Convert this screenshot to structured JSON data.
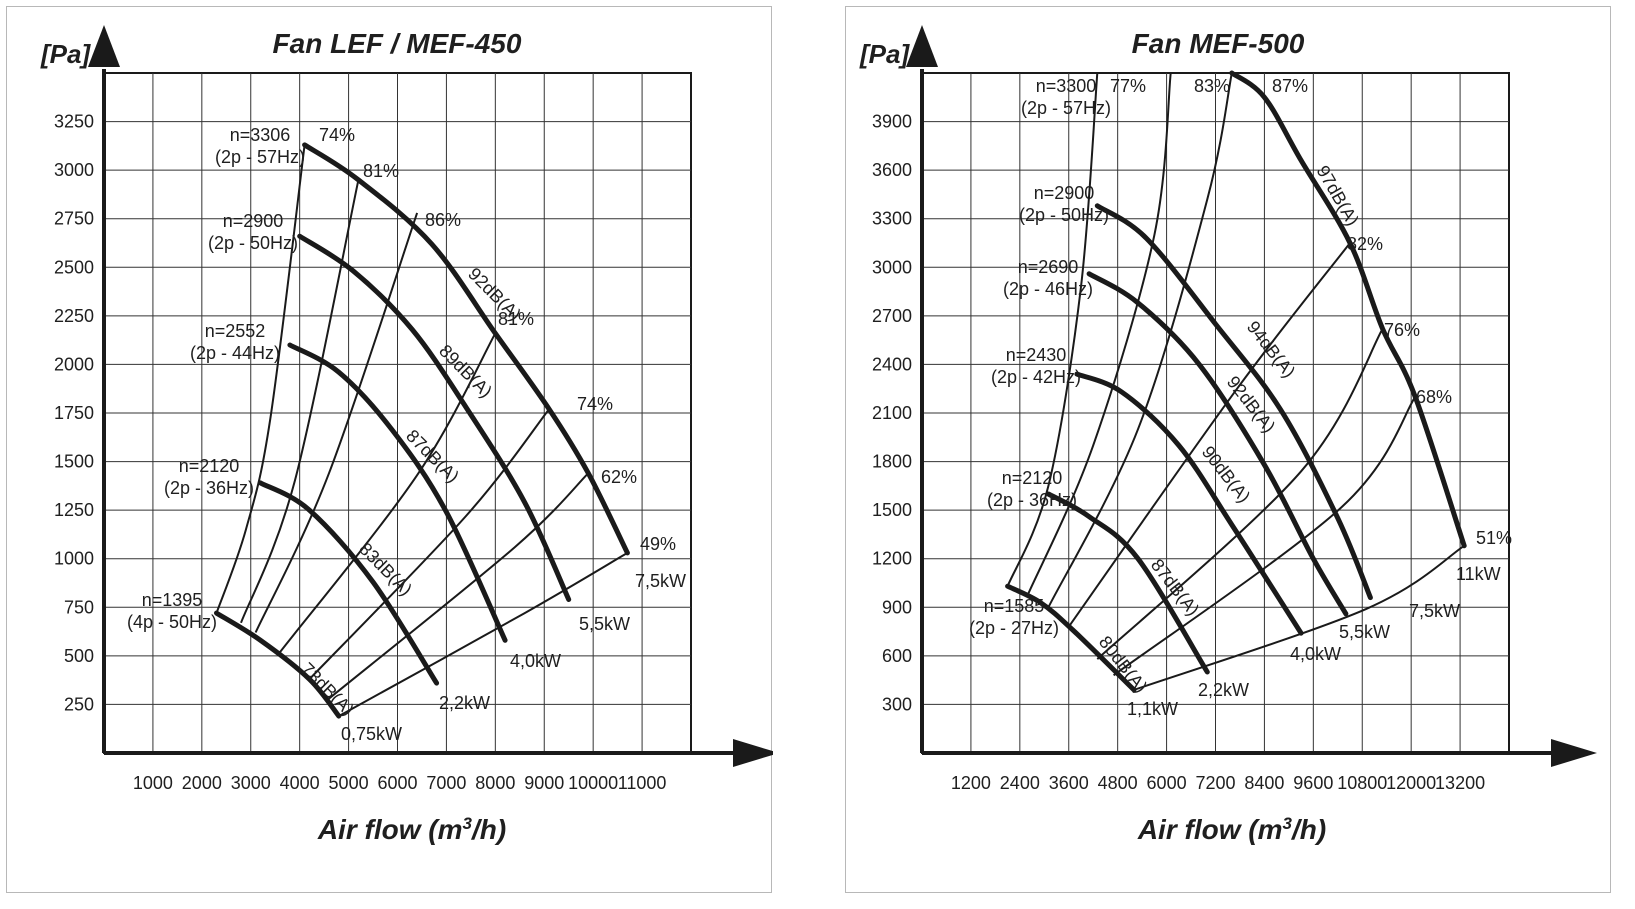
{
  "chart_data": [
    {
      "type": "line",
      "title": "Fan LEF / MEF-450",
      "ylabel": "[Pa]",
      "xlabel": "Air flow (m³/h)",
      "xlabel_parts": [
        "Air flow (m",
        "3",
        "/h)"
      ],
      "xlim": [
        0,
        12000
      ],
      "ylim": [
        0,
        3500
      ],
      "xticks": [
        1000,
        2000,
        3000,
        4000,
        5000,
        6000,
        7000,
        8000,
        9000,
        10000,
        11000
      ],
      "yticks": [
        250,
        500,
        750,
        1000,
        1250,
        1500,
        1750,
        2000,
        2250,
        2500,
        2750,
        3000,
        3250
      ],
      "grid": true,
      "speed_curves": [
        {
          "label": [
            "n=3306",
            "(2p - 57Hz)"
          ],
          "points": [
            [
              4100,
              3130
            ],
            [
              5200,
              2950
            ],
            [
              6700,
              2620
            ],
            [
              8000,
              2160
            ],
            [
              9100,
              1770
            ],
            [
              9900,
              1440
            ],
            [
              10700,
              1030
            ]
          ]
        },
        {
          "label": [
            "n=2900",
            "(2p - 50Hz)"
          ],
          "points": [
            [
              4000,
              2660
            ],
            [
              5100,
              2480
            ],
            [
              6300,
              2180
            ],
            [
              7400,
              1780
            ],
            [
              8600,
              1290
            ],
            [
              9500,
              790
            ]
          ]
        },
        {
          "label": [
            "n=2552",
            "(2p - 44Hz)"
          ],
          "points": [
            [
              3800,
              2100
            ],
            [
              4800,
              1960
            ],
            [
              5900,
              1660
            ],
            [
              7000,
              1240
            ],
            [
              8200,
              580
            ]
          ]
        },
        {
          "label": [
            "n=2120",
            "(2p - 36Hz)"
          ],
          "points": [
            [
              3200,
              1390
            ],
            [
              4200,
              1250
            ],
            [
              5500,
              880
            ],
            [
              6800,
              360
            ]
          ]
        },
        {
          "label": [
            "n=1395",
            "(4p - 50Hz)"
          ],
          "points": [
            [
              2300,
              720
            ],
            [
              3200,
              580
            ],
            [
              4200,
              380
            ],
            [
              4800,
              190
            ]
          ]
        }
      ],
      "efficiency_lines": [
        {
          "label": "74%",
          "points": [
            [
              2300,
              720
            ],
            [
              2900,
              1150
            ],
            [
              3400,
              1720
            ],
            [
              4100,
              3130
            ]
          ]
        },
        {
          "label": "81%",
          "points": [
            [
              2800,
              670
            ],
            [
              3900,
              1400
            ],
            [
              5200,
              2950
            ]
          ]
        },
        {
          "label": "86%",
          "points": [
            [
              3100,
              620
            ],
            [
              4600,
              1440
            ],
            [
              6400,
              2780
            ]
          ]
        },
        {
          "label": "81%",
          "points": [
            [
              3600,
              520
            ],
            [
              6400,
              1430
            ],
            [
              8000,
              2160
            ]
          ]
        },
        {
          "label": "74%",
          "points": [
            [
              4200,
              380
            ],
            [
              7400,
              1220
            ],
            [
              9100,
              1770
            ]
          ]
        },
        {
          "label": "62%",
          "points": [
            [
              4600,
              280
            ],
            [
              8400,
              1060
            ],
            [
              9900,
              1440
            ]
          ]
        },
        {
          "label": "49%",
          "points": [
            [
              4800,
              190
            ],
            [
              8600,
              720
            ],
            [
              10700,
              1030
            ]
          ]
        }
      ],
      "power_labels": [
        "0,75kW",
        "2,2kW",
        "4,0kW",
        "5,5kW",
        "7,5kW"
      ],
      "efficiency_labels": [
        "74%",
        "81%",
        "86%",
        "81%",
        "74%",
        "62%",
        "49%"
      ],
      "noise_labels": [
        "73dB(A)",
        "83dB(A)",
        "87dB(A)",
        "89dB(A)",
        "92dB(A)"
      ]
    },
    {
      "type": "line",
      "title": "Fan MEF-500",
      "ylabel": "[Pa]",
      "xlabel": "Air flow (m³/h)",
      "xlabel_parts": [
        "Air flow (m",
        "3",
        "/h)"
      ],
      "xlim": [
        0,
        14400
      ],
      "ylim": [
        0,
        4200
      ],
      "xticks": [
        1200,
        2400,
        3600,
        4800,
        6000,
        7200,
        8400,
        9600,
        10800,
        12000,
        13200
      ],
      "yticks": [
        300,
        600,
        900,
        1200,
        1500,
        1800,
        2100,
        2400,
        2700,
        3000,
        3300,
        3600,
        3900
      ],
      "grid": true,
      "speed_curves": [
        {
          "label": [
            "n=3300",
            "(2p - 57Hz)"
          ],
          "points": [
            [
              7600,
              4200
            ],
            [
              8400,
              4050
            ],
            [
              9300,
              3660
            ],
            [
              10500,
              3150
            ],
            [
              11300,
              2620
            ],
            [
              12100,
              2200
            ],
            [
              13300,
              1280
            ]
          ]
        },
        {
          "label": [
            "n=2900",
            "(2p - 50Hz)"
          ],
          "points": [
            [
              4300,
              3380
            ],
            [
              5500,
              3180
            ],
            [
              7200,
              2650
            ],
            [
              8800,
              2120
            ],
            [
              10200,
              1450
            ],
            [
              11000,
              960
            ]
          ]
        },
        {
          "label": [
            "n=2690",
            "(2p - 46Hz)"
          ],
          "points": [
            [
              4100,
              2960
            ],
            [
              5300,
              2780
            ],
            [
              6800,
              2400
            ],
            [
              8400,
              1780
            ],
            [
              9600,
              1200
            ],
            [
              10400,
              860
            ]
          ]
        },
        {
          "label": [
            "n=2430",
            "(2p - 42Hz)"
          ],
          "points": [
            [
              3800,
              2340
            ],
            [
              4900,
              2230
            ],
            [
              6300,
              1900
            ],
            [
              7600,
              1410
            ],
            [
              9300,
              740
            ]
          ]
        },
        {
          "label": [
            "n=2120",
            "(2p - 36Hz)"
          ],
          "points": [
            [
              3100,
              1600
            ],
            [
              4100,
              1460
            ],
            [
              5300,
              1200
            ],
            [
              7000,
              500
            ]
          ]
        },
        {
          "label": [
            "n=1585",
            "(2p - 27Hz)"
          ],
          "points": [
            [
              2100,
              1030
            ],
            [
              2900,
              930
            ],
            [
              3700,
              760
            ],
            [
              5200,
              390
            ]
          ]
        }
      ],
      "efficiency_lines": [
        {
          "label": "77%",
          "points": [
            [
              2100,
              1030
            ],
            [
              3100,
              1650
            ],
            [
              3900,
              2880
            ],
            [
              4300,
              4200
            ]
          ]
        },
        {
          "label": "83%",
          "points": [
            [
              2600,
              980
            ],
            [
              4200,
              1900
            ],
            [
              5700,
              3200
            ],
            [
              6100,
              4200
            ]
          ]
        },
        {
          "label": "87%",
          "points": [
            [
              3100,
              900
            ],
            [
              5300,
              2000
            ],
            [
              7000,
              3420
            ],
            [
              7600,
              4200
            ]
          ]
        },
        {
          "label": "82%",
          "points": [
            [
              3600,
              780
            ],
            [
              7700,
              2240
            ],
            [
              10500,
              3150
            ]
          ]
        },
        {
          "label": "76%",
          "points": [
            [
              4300,
              580
            ],
            [
              9300,
              1740
            ],
            [
              11300,
              2620
            ]
          ]
        },
        {
          "label": "68%",
          "points": [
            [
              4700,
              480
            ],
            [
              10300,
              1520
            ],
            [
              12100,
              2200
            ]
          ]
        },
        {
          "label": "51%",
          "points": [
            [
              5200,
              390
            ],
            [
              10900,
              890
            ],
            [
              13300,
              1280
            ]
          ]
        }
      ],
      "power_labels": [
        "1,1kW",
        "2,2kW",
        "4,0kW",
        "5,5kW",
        "7,5kW",
        "11kW"
      ],
      "efficiency_labels": [
        "77%",
        "83%",
        "87%",
        "82%",
        "76%",
        "68%",
        "51%"
      ],
      "noise_labels": [
        "80dB(A)",
        "87dB(A)",
        "90dB(A)",
        "92dB(A)",
        "94dB(A)",
        "97dB(A)"
      ]
    }
  ]
}
